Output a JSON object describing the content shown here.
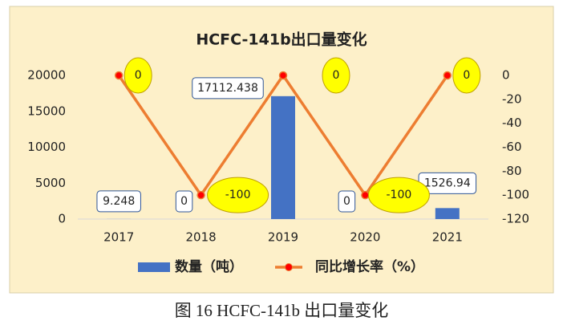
{
  "chart_data": {
    "type": "bar",
    "title": "HCFC-141b出口量变化",
    "categories": [
      "2017",
      "2018",
      "2019",
      "2020",
      "2021"
    ],
    "series": [
      {
        "name": "数量（吨）",
        "type": "bar",
        "color": "#4472c4",
        "values": [
          9.248,
          0,
          17112.438,
          0,
          1526.94
        ]
      },
      {
        "name": "同比增长率（%）",
        "type": "line",
        "axis": "y2",
        "color": "#ed7d31",
        "marker_color": "#ff0000",
        "values": [
          0,
          -100,
          0,
          -100,
          0
        ]
      }
    ],
    "ylim": [
      0,
      20000
    ],
    "yticks": [
      0,
      5000,
      10000,
      15000,
      20000
    ],
    "y2lim": [
      -120,
      0
    ],
    "y2ticks": [
      0,
      -20,
      -40,
      -60,
      -80,
      -100,
      -120
    ],
    "grid": false,
    "legend": "bottom"
  },
  "caption": "图 16   HCFC-141b 出口量变化"
}
